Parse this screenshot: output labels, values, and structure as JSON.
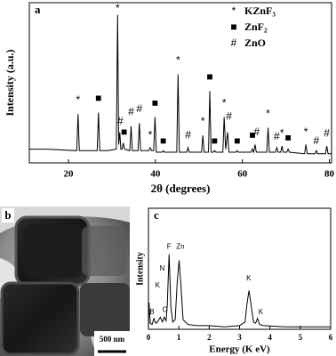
{
  "chart_data": [
    {
      "type": "line",
      "panel_label": "a",
      "x_label": "2θ (degrees)",
      "y_label": "Intensity (a.u.)",
      "color": "#000000",
      "xlim": [
        11,
        80.5
      ],
      "xticks": [
        20,
        40,
        60,
        80
      ],
      "ylim": [
        0,
        105
      ],
      "x": [
        11,
        15,
        21.9,
        22.2,
        22.5,
        26.6,
        26.9,
        27.2,
        29,
        31.0,
        31.3,
        31.55,
        31.8,
        32.05,
        32.3,
        32.6,
        32.9,
        34.1,
        34.4,
        34.7,
        36.0,
        36.3,
        36.6,
        38.5,
        38.8,
        39.1,
        39.6,
        39.9,
        40.2,
        41.5,
        41.8,
        42.1,
        44.9,
        45.2,
        45.5,
        47.2,
        47.5,
        47.8,
        50.6,
        50.9,
        51.2,
        52.2,
        52.5,
        52.8,
        53.3,
        53.6,
        53.9,
        55.5,
        55.8,
        56.15,
        56.6,
        56.9,
        58.5,
        58.8,
        59.1,
        62.0,
        62.3,
        62.6,
        62.9,
        63.2,
        65.6,
        65.9,
        66.2,
        67.6,
        67.9,
        68.2,
        68.8,
        69.1,
        69.4,
        70.2,
        70.5,
        70.8,
        74.3,
        74.6,
        74.9,
        76.7,
        77,
        77.3,
        79.1,
        79.4,
        79.7,
        80.5
      ],
      "values": [
        9,
        9,
        8,
        32,
        8,
        8,
        33,
        8,
        8,
        9,
        97,
        12,
        20,
        9,
        9,
        13,
        9,
        8,
        24,
        8,
        8,
        26,
        8,
        8,
        10,
        8,
        8,
        30,
        7,
        7,
        8,
        7,
        7,
        58,
        7,
        7,
        10,
        7,
        7,
        18,
        7,
        7,
        47,
        7,
        7,
        8,
        7,
        7,
        30,
        9,
        20,
        7,
        7,
        8,
        7,
        7,
        9,
        7,
        12,
        7,
        7,
        23,
        7,
        7,
        10,
        7,
        7,
        11,
        7,
        7,
        9,
        7,
        6,
        12,
        6,
        6,
        8,
        6,
        6,
        11,
        6,
        6
      ],
      "annotations": [
        {
          "text": "*",
          "x": 22.2,
          "y": 41
        },
        {
          "text": "■",
          "x": 26.9,
          "y": 42
        },
        {
          "text": "*",
          "x": 31.3,
          "y": 101
        },
        {
          "text": "#",
          "x": 31.9,
          "y": 27
        },
        {
          "text": "■",
          "x": 32.8,
          "y": 20
        },
        {
          "text": "#",
          "x": 34.4,
          "y": 33
        },
        {
          "text": "#",
          "x": 36.3,
          "y": 35
        },
        {
          "text": "*",
          "x": 38.8,
          "y": 18
        },
        {
          "text": "■",
          "x": 39.9,
          "y": 39
        },
        {
          "text": "■",
          "x": 41.8,
          "y": 14
        },
        {
          "text": "*",
          "x": 45.2,
          "y": 67
        },
        {
          "text": "#",
          "x": 47.5,
          "y": 18
        },
        {
          "text": "*",
          "x": 50.9,
          "y": 27
        },
        {
          "text": "■",
          "x": 52.5,
          "y": 56
        },
        {
          "text": "■",
          "x": 53.6,
          "y": 14
        },
        {
          "text": "*",
          "x": 55.8,
          "y": 39
        },
        {
          "text": "#",
          "x": 56.9,
          "y": 30
        },
        {
          "text": "■",
          "x": 58.8,
          "y": 14
        },
        {
          "text": "■",
          "x": 62.3,
          "y": 18
        },
        {
          "text": "#",
          "x": 63.3,
          "y": 20
        },
        {
          "text": "*",
          "x": 65.9,
          "y": 32
        },
        {
          "text": "#",
          "x": 67.9,
          "y": 17
        },
        {
          "text": "*",
          "x": 69.1,
          "y": 19
        },
        {
          "text": "■",
          "x": 70.5,
          "y": 16
        },
        {
          "text": "*",
          "x": 74.6,
          "y": 20
        },
        {
          "text": "#",
          "x": 77,
          "y": 14
        },
        {
          "text": "#",
          "x": 79.4,
          "y": 19
        }
      ],
      "legend": [
        {
          "symbol": "*",
          "label": "KZnF₃"
        },
        {
          "symbol": "■",
          "label": "ZnF₂"
        },
        {
          "symbol": "#",
          "label": "ZnO"
        }
      ]
    },
    {
      "type": "line",
      "panel_label": "c",
      "x_label": "Energy (K eV)",
      "y_label": "Intensity",
      "color": "#000000",
      "xlim": [
        0,
        6
      ],
      "xticks": [
        0,
        1,
        2,
        3,
        4,
        5,
        6
      ],
      "ylim": [
        0,
        100
      ],
      "x": [
        0,
        0.02,
        0.06,
        0.12,
        0.18,
        0.24,
        0.3,
        0.39,
        0.46,
        0.52,
        0.58,
        0.62,
        0.68,
        0.74,
        0.8,
        0.88,
        0.95,
        1.01,
        1.07,
        1.14,
        1.3,
        1.6,
        2.0,
        2.5,
        3.0,
        3.18,
        3.25,
        3.31,
        3.38,
        3.46,
        3.53,
        3.59,
        3.66,
        3.8,
        4.5,
        5,
        6
      ],
      "values": [
        0,
        22,
        5,
        4,
        9,
        5,
        6,
        10,
        6,
        10,
        7,
        20,
        62,
        18,
        6,
        8,
        40,
        57,
        36,
        8,
        4,
        3,
        3,
        2,
        3,
        6,
        22,
        32,
        20,
        6,
        5,
        9,
        4,
        3,
        2,
        2,
        2
      ],
      "annotations": [
        {
          "text": "N",
          "x": 0.45,
          "y": 50
        },
        {
          "text": "K",
          "x": 0.3,
          "y": 36
        },
        {
          "text": "B",
          "x": 0.12,
          "y": 14
        },
        {
          "text": "O",
          "x": 0.55,
          "y": 16
        },
        {
          "text": "F",
          "x": 0.68,
          "y": 68
        },
        {
          "text": "Zn",
          "x": 1.05,
          "y": 68
        },
        {
          "text": "K",
          "x": 3.3,
          "y": 42
        },
        {
          "text": "K",
          "x": 3.7,
          "y": 14
        }
      ]
    }
  ],
  "image": {
    "label": "b",
    "scale_bar": "500 nm"
  }
}
